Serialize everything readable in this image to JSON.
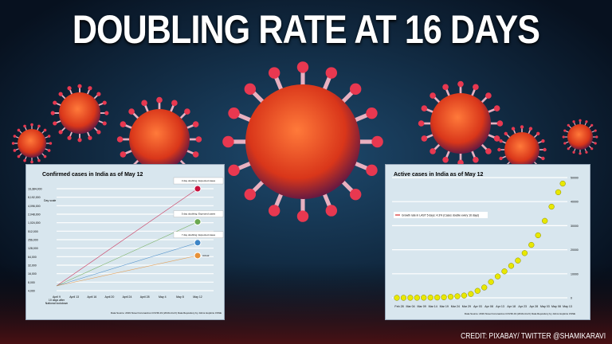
{
  "headline": "DOUBLING RATE AT 16 DAYS",
  "credit": "CREDIT: PIXABAY/ TWITTER @SHAMIKARAVI",
  "colors": {
    "background": "#0b1a2e",
    "virus": "#e0461e",
    "panel": "#d8e6ee"
  },
  "chart_data": [
    {
      "type": "line",
      "title": "Confirmed cases in India as of May 12",
      "yscale": "log2",
      "yticks": [
        "4,000",
        "8,000",
        "16,000",
        "32,000",
        "64,000",
        "128,000",
        "256,000",
        "512,000",
        "1,024,000",
        "2,048,000",
        "4,096,000",
        "8,192,000",
        "16,384,000"
      ],
      "xticks": [
        "April 9\n10 days after\nNational lockdown",
        "April 13",
        "April 16",
        "April 20",
        "April 24",
        "April 28",
        "May 4",
        "May 8",
        "May 12"
      ],
      "corner_label": "Day scale",
      "series": [
        {
          "color": "#c8103c",
          "start": 5900,
          "end": 16384000,
          "label": "3 day doubling: Expected cases"
        },
        {
          "color": "#6aa84f",
          "start": 5900,
          "end": 1100000,
          "label": "5 day doubling: Expected cases"
        },
        {
          "color": "#3d85c6",
          "start": 5900,
          "end": 200000,
          "label": "7 day doubling: Expected cases"
        },
        {
          "color": "#e69138",
          "start": 5900,
          "end": 70000,
          "label": "Actual"
        }
      ],
      "source": "Data Source: 2019 Novel Coronavirus COVID-19 (2019-nCoV) Data Repository by Johns Hopkins CSSE"
    },
    {
      "type": "scatter",
      "title": "Active cases in India as of May 12",
      "ylim": [
        0,
        50000
      ],
      "yticks": [
        "0",
        "10000",
        "20000",
        "30000",
        "40000",
        "50000"
      ],
      "xticks": [
        "Feb 28",
        "Mar 04",
        "Mar 09",
        "Mar 14",
        "Mar 19",
        "Mar 24",
        "Mar 29",
        "Apr 03",
        "Apr 08",
        "Apr 13",
        "Apr 18",
        "Apr 23",
        "Apr 28",
        "May 03",
        "May 08",
        "May 13"
      ],
      "legend": "Growth rate in LAST 5 days: 4.3% (Cases double every 16 days)",
      "marker_color": "#e8e800",
      "x": [
        "Feb 28",
        "Mar 02",
        "Mar 05",
        "Mar 08",
        "Mar 11",
        "Mar 14",
        "Mar 17",
        "Mar 20",
        "Mar 23",
        "Mar 26",
        "Mar 29",
        "Apr 01",
        "Apr 04",
        "Apr 07",
        "Apr 10",
        "Apr 13",
        "Apr 16",
        "Apr 19",
        "Apr 22",
        "Apr 25",
        "Apr 28",
        "May 01",
        "May 04",
        "May 07",
        "May 10",
        "May 12"
      ],
      "y": [
        3,
        5,
        28,
        39,
        60,
        90,
        125,
        220,
        420,
        650,
        950,
        1600,
        2900,
        4300,
        6600,
        8900,
        11000,
        13300,
        15500,
        18600,
        22000,
        26000,
        32000,
        37900,
        43900,
        47500
      ],
      "source": "Data Source: 2019 Novel Coronavirus COVID-19 (2019-nCoV) Data Repository by Johns Hopkins CSSE"
    }
  ]
}
